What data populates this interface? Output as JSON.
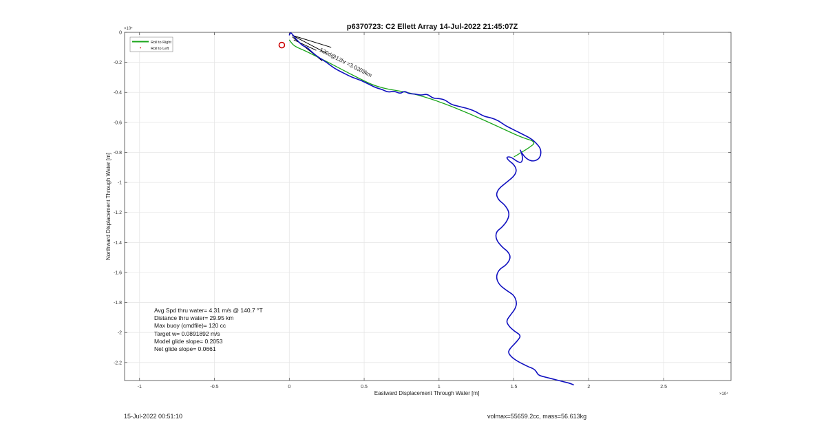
{
  "chart_data": {
    "type": "line",
    "title": "p6370723: C2 Ellett Array 14-Jul-2022 21:45:07Z",
    "xlabel": "Eastward Displacement Through Water [m]",
    "ylabel": "Northward Displacement Through Water [m]",
    "x_exponent": "×10⁴",
    "y_exponent": "×10⁴",
    "xlim": [
      -1.1,
      2.95
    ],
    "ylim": [
      -2.32,
      0.0
    ],
    "xticks": [
      -1,
      -0.5,
      0,
      0.5,
      1,
      1.5,
      2,
      2.5
    ],
    "xtick_labels": [
      "-1",
      "-0.5",
      "0",
      "0.5",
      "1",
      "1.5",
      "2",
      "2.5"
    ],
    "yticks": [
      0,
      -0.2,
      -0.4,
      -0.6,
      -0.8,
      -1,
      -1.2,
      -1.4,
      -1.6,
      -1.8,
      -2,
      -2.2
    ],
    "ytick_labels": [
      "0",
      "-0.2",
      "-0.4",
      "-0.6",
      "-0.8",
      "-1",
      "-1.2",
      "-1.4",
      "-1.6",
      "-1.8",
      "-2",
      "-2.2"
    ],
    "grid": true,
    "legend": {
      "placement": "top-left",
      "entries": [
        {
          "name": "Roll to Right",
          "color": "#1aa51a",
          "marker": "line"
        },
        {
          "name": "Roll to Left",
          "color": "#cc0000",
          "marker": "dot"
        }
      ]
    },
    "series": [
      {
        "name": "Roll to Right",
        "color": "#1aa51a",
        "x": [
          0.0,
          0.02,
          0.05,
          0.1,
          0.18,
          0.3,
          0.45,
          0.6,
          0.8,
          1.0,
          1.2,
          1.4,
          1.55,
          1.65,
          1.6,
          1.55,
          1.5
        ],
        "y": [
          -0.05,
          -0.08,
          -0.1,
          -0.12,
          -0.16,
          -0.22,
          -0.3,
          -0.37,
          -0.4,
          -0.46,
          -0.54,
          -0.63,
          -0.7,
          -0.73,
          -0.77,
          -0.8,
          -0.83
        ]
      },
      {
        "name": "trajectory",
        "color": "#1010c0",
        "x": [
          0.0,
          0.005,
          0.02,
          0.04,
          0.06,
          0.09,
          0.12,
          0.16,
          0.2,
          0.25,
          0.3,
          0.36,
          0.42,
          0.48,
          0.54,
          0.58,
          0.62,
          0.66,
          0.7,
          0.74,
          0.77,
          0.8,
          0.84,
          0.88,
          0.92,
          0.96,
          1.0,
          1.04,
          1.08,
          1.12,
          1.16,
          1.2,
          1.25,
          1.3,
          1.35,
          1.4,
          1.44,
          1.48,
          1.52,
          1.56,
          1.6,
          1.63,
          1.66,
          1.68,
          1.68,
          1.66,
          1.62,
          1.58,
          1.55,
          1.54,
          1.55,
          1.56,
          1.55,
          1.52,
          1.48,
          1.45,
          1.46,
          1.5,
          1.52,
          1.5,
          1.45,
          1.4,
          1.38,
          1.4,
          1.44,
          1.47,
          1.46,
          1.42,
          1.38,
          1.38,
          1.42,
          1.46,
          1.48,
          1.45,
          1.4,
          1.38,
          1.4,
          1.45,
          1.5,
          1.52,
          1.51,
          1.48,
          1.45,
          1.46,
          1.5,
          1.55,
          1.52,
          1.48,
          1.46,
          1.48,
          1.52,
          1.56,
          1.6,
          1.63,
          1.65,
          1.66,
          1.68,
          1.72,
          1.76,
          1.8,
          1.84,
          1.88,
          1.9
        ],
        "y": [
          -0.02,
          0.0,
          -0.01,
          -0.04,
          -0.06,
          -0.09,
          -0.1,
          -0.14,
          -0.17,
          -0.2,
          -0.24,
          -0.27,
          -0.3,
          -0.32,
          -0.35,
          -0.37,
          -0.38,
          -0.4,
          -0.39,
          -0.41,
          -0.39,
          -0.41,
          -0.41,
          -0.42,
          -0.41,
          -0.44,
          -0.44,
          -0.45,
          -0.48,
          -0.49,
          -0.5,
          -0.51,
          -0.53,
          -0.56,
          -0.57,
          -0.59,
          -0.62,
          -0.64,
          -0.66,
          -0.68,
          -0.7,
          -0.72,
          -0.75,
          -0.78,
          -0.82,
          -0.85,
          -0.86,
          -0.84,
          -0.8,
          -0.78,
          -0.8,
          -0.84,
          -0.87,
          -0.86,
          -0.83,
          -0.83,
          -0.85,
          -0.88,
          -0.92,
          -0.96,
          -1.0,
          -1.04,
          -1.08,
          -1.12,
          -1.15,
          -1.2,
          -1.25,
          -1.3,
          -1.33,
          -1.38,
          -1.43,
          -1.46,
          -1.5,
          -1.55,
          -1.58,
          -1.63,
          -1.68,
          -1.72,
          -1.75,
          -1.8,
          -1.84,
          -1.88,
          -1.92,
          -1.95,
          -1.99,
          -2.02,
          -2.06,
          -2.1,
          -2.13,
          -2.16,
          -2.19,
          -2.21,
          -2.23,
          -2.24,
          -2.26,
          -2.28,
          -2.29,
          -2.3,
          -2.31,
          -2.32,
          -2.33,
          -2.34,
          -2.35
        ]
      }
    ],
    "markers": [
      {
        "x": -0.05,
        "y": -0.085,
        "shape": "circle",
        "color": "#cc0000"
      }
    ],
    "annotations": [
      {
        "text": "120d@12hr =3.0209km",
        "x": 0.2,
        "y": -0.125,
        "rotation": 27
      }
    ]
  },
  "info_box": {
    "lines": [
      "Avg Spd thru water=  4.31 m/s @ 140.7 °T",
      "Distance thru water= 29.95 km",
      "Max buoy (cmdfile)= 120 cc",
      "Target w= 0.0891892 m/s",
      "Model glide slope= 0.2053",
      "Net glide slope= 0.0661"
    ]
  },
  "footer": {
    "left": "15-Jul-2022 00:51:10",
    "right": "volmax=55659.2cc, mass=56.613kg"
  }
}
